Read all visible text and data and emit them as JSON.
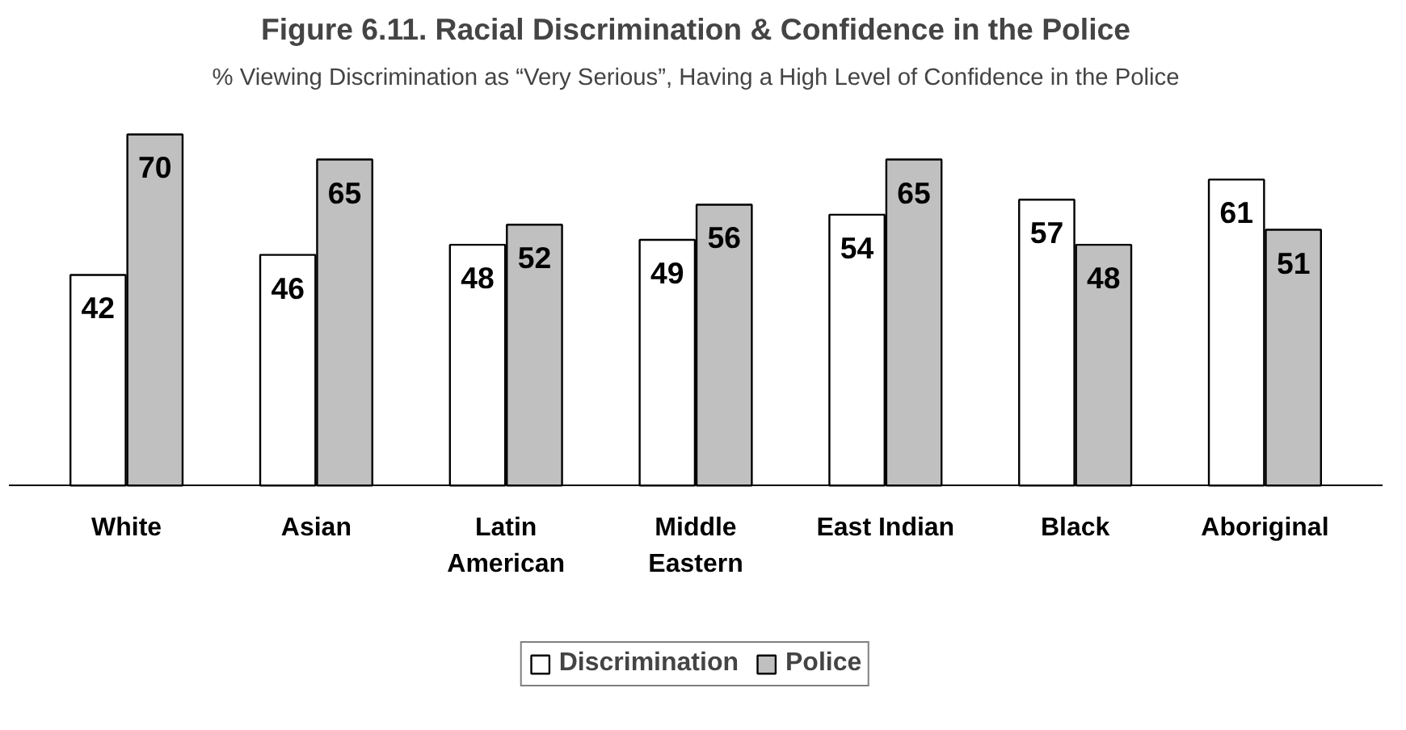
{
  "chart_data": {
    "type": "bar",
    "title": "Figure 6.11. Racial Discrimination & Confidence in the Police",
    "subtitle": "% Viewing Discrimination as “Very Serious”, Having a High Level of Confidence in the Police",
    "categories": [
      "White",
      "Asian",
      "Latin\nAmerican",
      "Middle\nEastern",
      "East Indian",
      "Black",
      "Aboriginal"
    ],
    "series": [
      {
        "name": "Discrimination",
        "color": "#ffffff",
        "values": [
          42,
          46,
          48,
          49,
          54,
          57,
          61
        ]
      },
      {
        "name": "Police",
        "color": "#c0c0c0",
        "values": [
          70,
          65,
          52,
          56,
          65,
          48,
          51
        ]
      }
    ],
    "data_labels": true,
    "legend": "bottom",
    "grid": false
  }
}
